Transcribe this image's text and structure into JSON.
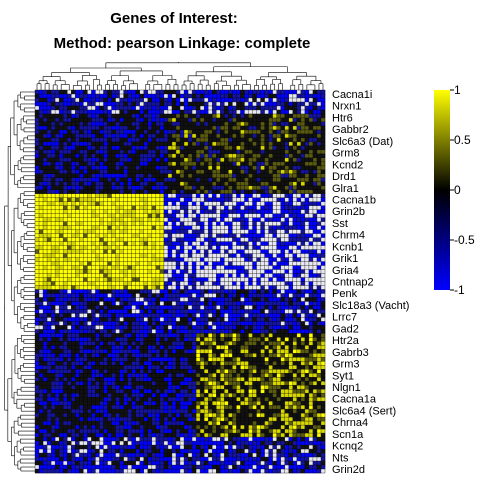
{
  "chart_data": {
    "type": "heatmap",
    "title": "Genes of Interest:",
    "subtitle": "Method: pearson  Linkage: complete",
    "row_labels": [
      "Cacna1i",
      "Nrxn1",
      "Htr6",
      "Gabbr2",
      "Slc6a3 (Dat)",
      "Grm8",
      "Kcnd2",
      "Drd1",
      "Glra1",
      "Cacna1b",
      "Grin2b",
      "Sst",
      "Chrm4",
      "Kcnb1",
      "Grik1",
      "Gria4",
      "Cntnap2",
      "Penk",
      "Slc18a3 (Vacht)",
      "Lrrc7",
      "Gad2",
      "Htr2a",
      "Gabrb3",
      "Grm3",
      "Syt1",
      "Nlgn1",
      "Cacna1a",
      "Slc6a4 (Sert)",
      "Chrna4",
      "Scn1a",
      "Kcnq2",
      "Nts",
      "Grin2d"
    ],
    "legend": {
      "ticks": [
        1,
        0.5,
        0,
        -0.5,
        -1
      ],
      "range": [
        -1,
        1
      ],
      "colors": [
        "#0000ff",
        "#000000",
        "#ffff00"
      ],
      "placement": "right"
    }
  }
}
